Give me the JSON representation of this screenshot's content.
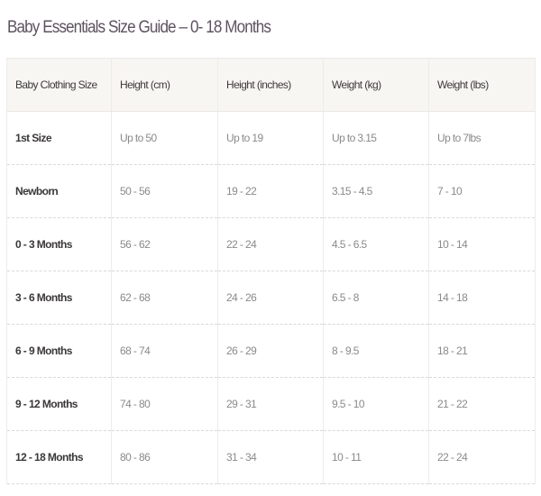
{
  "title": "Baby Essentials Size Guide – 0- 18 Months",
  "table": {
    "headers": [
      "Baby Clothing Size",
      "Height (cm)",
      "Height (inches)",
      "Weight (kg)",
      "Weight (lbs)"
    ],
    "rows": [
      [
        "1st Size",
        "Up to 50",
        "Up to 19",
        "Up to 3.15",
        "Up to 7lbs"
      ],
      [
        "Newborn",
        "50 - 56",
        "19 - 22",
        "3.15 - 4.5",
        "7 - 10"
      ],
      [
        "0 - 3 Months",
        "56 - 62",
        "22 - 24",
        "4.5 - 6.5",
        "10 - 14"
      ],
      [
        "3 - 6 Months",
        "62 - 68",
        "24 - 26",
        "6.5 - 8",
        "14 - 18"
      ],
      [
        "6 - 9 Months",
        "68 - 74",
        "26 - 29",
        "8 - 9.5",
        "18 - 21"
      ],
      [
        "9 - 12 Months",
        "74 - 80",
        "29 - 31",
        "9.5 - 10",
        "21 - 22"
      ],
      [
        "12 - 18 Months",
        "80 - 86",
        "31 - 34",
        "10 - 11",
        "22 - 24"
      ]
    ]
  }
}
